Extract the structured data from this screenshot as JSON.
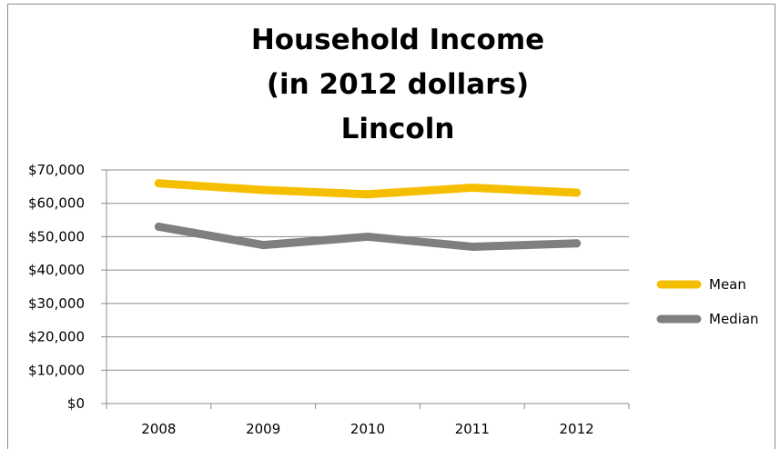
{
  "chart_data": {
    "type": "line",
    "title_lines": [
      "Household Income",
      "(in 2012 dollars)",
      "Lincoln"
    ],
    "categories": [
      "2008",
      "2009",
      "2010",
      "2011",
      "2012"
    ],
    "series": [
      {
        "name": "Mean",
        "color": "#f5bf00",
        "values": [
          66000,
          64000,
          62700,
          64700,
          63200
        ]
      },
      {
        "name": "Median",
        "color": "#7f7f7f",
        "values": [
          53000,
          47500,
          50000,
          47000,
          48000
        ]
      }
    ],
    "ylim": [
      0,
      70000
    ],
    "y_ticks": [
      {
        "value": 0,
        "label": "$0"
      },
      {
        "value": 10000,
        "label": "$10,000"
      },
      {
        "value": 20000,
        "label": "$20,000"
      },
      {
        "value": 30000,
        "label": "$30,000"
      },
      {
        "value": 40000,
        "label": "$40,000"
      },
      {
        "value": 50000,
        "label": "$50,000"
      },
      {
        "value": 60000,
        "label": "$60,000"
      },
      {
        "value": 70000,
        "label": "$70,000"
      }
    ],
    "grid": "horizontal",
    "legend_position": "right"
  }
}
